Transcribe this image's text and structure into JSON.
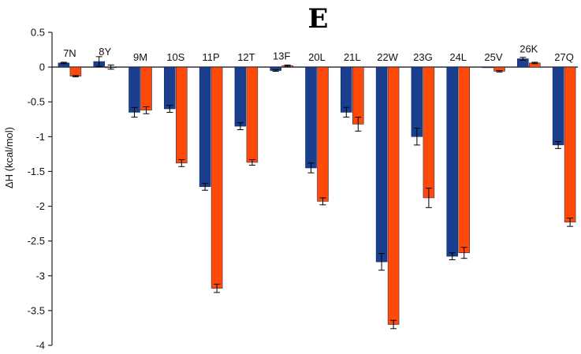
{
  "chart_data": {
    "type": "bar",
    "title": "E",
    "ylabel": "ΔH (kcal/mol)",
    "xlabel": "",
    "ylim": [
      -4,
      0.5
    ],
    "yticks": [
      0.5,
      0,
      -0.5,
      -1,
      -1.5,
      -2,
      -2.5,
      -3,
      -3.5,
      -4
    ],
    "ytick_labels": [
      "0.5",
      "0",
      "-0.5",
      "-1",
      "-1.5",
      "-2",
      "-2.5",
      "-3",
      "-3.5",
      "-4"
    ],
    "categories": [
      "7N",
      "8Y",
      "9M",
      "10S",
      "11P",
      "12T",
      "13F",
      "20L",
      "21L",
      "22W",
      "23G",
      "24L",
      "25V",
      "26K",
      "27Q"
    ],
    "series": [
      {
        "color": "#1a3f8f",
        "values": [
          0.06,
          0.08,
          -0.65,
          -0.6,
          -1.72,
          -0.85,
          -0.05,
          -1.45,
          -0.65,
          -2.8,
          -1.0,
          -2.72,
          0.0,
          0.12,
          -1.12
        ],
        "errors": [
          0.01,
          0.07,
          0.07,
          0.05,
          0.05,
          0.05,
          0.01,
          0.07,
          0.07,
          0.12,
          0.12,
          0.05,
          0.0,
          0.02,
          0.05
        ]
      },
      {
        "color": "#ff4a0a",
        "values": [
          -0.13,
          0.0,
          -0.62,
          -1.38,
          -3.18,
          -1.37,
          0.02,
          -1.93,
          -0.82,
          -3.7,
          -1.88,
          -2.67,
          -0.06,
          0.06,
          -2.23
        ],
        "errors": [
          0.01,
          0.03,
          0.05,
          0.05,
          0.06,
          0.04,
          0.01,
          0.05,
          0.1,
          0.06,
          0.14,
          0.08,
          0.01,
          0.01,
          0.06
        ]
      }
    ]
  }
}
